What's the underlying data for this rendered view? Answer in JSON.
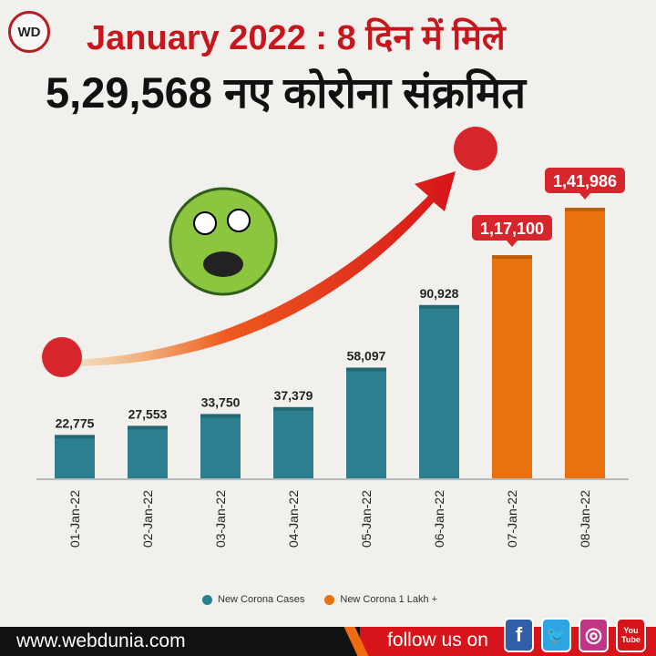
{
  "header": {
    "logo_text": "WD",
    "title_line1": "January 2022 : 8 दिन में मिले",
    "title_line2": "5,29,568 नए कोरोना संक्रमित"
  },
  "chart_data": {
    "type": "bar",
    "title": "January 2022 : 8 दिन में मिले 5,29,568 नए कोरोना संक्रमित",
    "categories": [
      "01-Jan-22",
      "02-Jan-22",
      "03-Jan-22",
      "04-Jan-22",
      "05-Jan-22",
      "06-Jan-22",
      "07-Jan-22",
      "08-Jan-22"
    ],
    "values": [
      22775,
      27553,
      33750,
      37379,
      58097,
      90928,
      117100,
      141986
    ],
    "labels": [
      "22,775",
      "27,553",
      "33,750",
      "37,379",
      "58,097",
      "90,928",
      "1,17,100",
      "1,41,986"
    ],
    "series_of_bar": [
      "New Corona Cases",
      "New Corona Cases",
      "New Corona Cases",
      "New Corona Cases",
      "New Corona Cases",
      "New Corona Cases",
      "New Corona 1 Lakh +",
      "New Corona 1 Lakh +"
    ],
    "legend": [
      {
        "name": "New Corona Cases",
        "color": "#2b7f8f"
      },
      {
        "name": "New Corona 1 Lakh +",
        "color": "#e8730e"
      }
    ],
    "legend_position": "bottom",
    "ylim": [
      0,
      150000
    ],
    "grid": false,
    "highlight_label_color": "#d7262b"
  },
  "footer": {
    "site": "www.webdunia.com",
    "follow": "follow us on",
    "social": [
      {
        "icon": "facebook-icon",
        "glyph": "f",
        "color": "#2f5fa8"
      },
      {
        "icon": "twitter-icon",
        "glyph": "🐦",
        "color": "#2ea5e0"
      },
      {
        "icon": "instagram-icon",
        "glyph": "◎",
        "color": "#c13584"
      },
      {
        "icon": "youtube-icon",
        "glyph": "You Tube",
        "color": "#d7141a"
      }
    ]
  }
}
